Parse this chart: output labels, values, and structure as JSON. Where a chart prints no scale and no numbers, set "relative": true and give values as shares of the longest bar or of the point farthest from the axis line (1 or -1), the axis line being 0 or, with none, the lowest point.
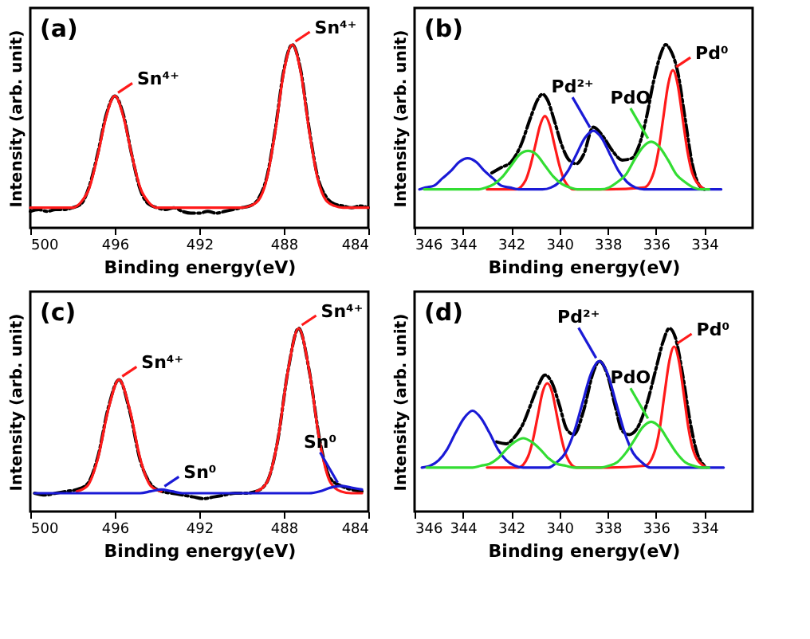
{
  "chart_data": [
    {
      "type": "line",
      "relative": true,
      "xlabel": "Binding energy(eV)",
      "ylabel": "Intensity (arb. unit)",
      "xlim": [
        500,
        484
      ],
      "xticks": [
        500,
        496,
        492,
        488,
        484
      ],
      "tick_labels": "x",
      "x": [
        500,
        499.6,
        499.2,
        498.8,
        498.4,
        498,
        497.6,
        497.2,
        496.8,
        496.4,
        496,
        495.6,
        495.2,
        494.8,
        494.4,
        494,
        493.6,
        493.2,
        492.8,
        492.4,
        492,
        491.6,
        491.2,
        490.8,
        490.4,
        490,
        489.6,
        489.2,
        488.8,
        488.4,
        488,
        487.6,
        487.2,
        486.8,
        486.4,
        486,
        485.6,
        485.2,
        484.8,
        484.4,
        484
      ],
      "series": [
        {
          "color": "#000000",
          "line_style": "dashed",
          "values": [
            0.09,
            0.1,
            0.09,
            0.1,
            0.1,
            0.11,
            0.13,
            0.23,
            0.41,
            0.62,
            0.72,
            0.62,
            0.4,
            0.21,
            0.13,
            0.11,
            0.1,
            0.11,
            0.09,
            0.08,
            0.08,
            0.09,
            0.08,
            0.09,
            0.1,
            0.11,
            0.12,
            0.16,
            0.28,
            0.54,
            0.86,
            1.0,
            0.86,
            0.54,
            0.28,
            0.17,
            0.13,
            0.12,
            0.11,
            0.12,
            0.11
          ]
        },
        {
          "color": "#ff1a1a",
          "line_style": "solid",
          "values": [
            0.11,
            0.11,
            0.11,
            0.11,
            0.11,
            0.11,
            0.14,
            0.22,
            0.4,
            0.61,
            0.72,
            0.61,
            0.4,
            0.22,
            0.14,
            0.11,
            0.11,
            0.11,
            0.11,
            0.11,
            0.11,
            0.11,
            0.11,
            0.11,
            0.11,
            0.11,
            0.12,
            0.15,
            0.27,
            0.53,
            0.85,
            1.0,
            0.85,
            0.53,
            0.27,
            0.15,
            0.12,
            0.11,
            0.11,
            0.11,
            0.11
          ]
        }
      ],
      "annotations": [
        "(a)",
        {
          "text": "Sn⁴⁺",
          "x": 496,
          "y": 0.72
        },
        {
          "text": "Sn⁴⁺",
          "x": 487.6,
          "y": 1.0
        }
      ]
    },
    {
      "type": "line",
      "relative": true,
      "xlabel": "Binding energy(eV)",
      "ylabel": "Intensity (arb. unit)",
      "xlim": [
        346,
        332
      ],
      "xticks": [
        346,
        344,
        342,
        340,
        338,
        336,
        334
      ],
      "tick_labels": "x",
      "series": [
        {
          "color": "#000000",
          "line_style": "dashed",
          "x": [
            342.8,
            342.4,
            342.0,
            341.6,
            341.2,
            340.9,
            340.7,
            340.5,
            340.2,
            339.9,
            339.6,
            339.3,
            339.0,
            338.6,
            338.2,
            337.8,
            337.4,
            337.0,
            336.7,
            336.4,
            336.1,
            335.8,
            335.6,
            335.4,
            335.1,
            334.8,
            334.5,
            334.2,
            334.0
          ],
          "values": [
            0.3,
            0.33,
            0.36,
            0.45,
            0.6,
            0.7,
            0.73,
            0.7,
            0.58,
            0.45,
            0.37,
            0.35,
            0.4,
            0.55,
            0.5,
            0.42,
            0.37,
            0.38,
            0.45,
            0.6,
            0.8,
            0.95,
            1.0,
            0.97,
            0.85,
            0.6,
            0.35,
            0.23,
            0.21
          ]
        },
        {
          "color": "#ff1a1a",
          "line_style": "solid",
          "x": [
            343,
            341.8,
            341.4,
            341.2,
            341.0,
            340.8,
            340.6,
            340.4,
            340.2,
            340.0,
            339.8,
            339.4,
            338,
            336.5,
            336.1,
            335.9,
            335.7,
            335.5,
            335.3,
            335.1,
            334.9,
            334.7,
            334.5,
            334.1,
            334
          ],
          "values": [
            0.21,
            0.21,
            0.26,
            0.34,
            0.45,
            0.56,
            0.61,
            0.56,
            0.45,
            0.34,
            0.26,
            0.21,
            0.21,
            0.22,
            0.3,
            0.42,
            0.6,
            0.78,
            0.86,
            0.78,
            0.6,
            0.42,
            0.3,
            0.22,
            0.21
          ]
        },
        {
          "color": "#1a1ad6",
          "line_style": "solid",
          "x": [
            345.8,
            345.55,
            345.2,
            344.85,
            344.5,
            344.15,
            343.8,
            343.45,
            343.1,
            342.75,
            342.4,
            342.05,
            341.7,
            340.7,
            340.35,
            340.0,
            339.65,
            339.3,
            338.95,
            338.6,
            338.25,
            337.9,
            337.55,
            337.2,
            336.85,
            336.5,
            333.3
          ],
          "values": [
            0.21,
            0.22,
            0.23,
            0.27,
            0.31,
            0.36,
            0.38,
            0.36,
            0.31,
            0.27,
            0.23,
            0.22,
            0.21,
            0.21,
            0.22,
            0.25,
            0.31,
            0.4,
            0.49,
            0.53,
            0.49,
            0.4,
            0.31,
            0.25,
            0.22,
            0.21,
            0.21
          ]
        },
        {
          "color": "#33dd33",
          "line_style": "solid",
          "x": [
            345.6,
            343.4,
            343.05,
            342.7,
            342.35,
            342.0,
            341.65,
            341.3,
            340.95,
            340.6,
            340.25,
            339.9,
            339.55,
            339.2,
            338.3,
            337.95,
            337.6,
            337.25,
            336.9,
            336.55,
            336.2,
            335.85,
            335.5,
            335.15,
            334.8,
            334.45,
            334.1,
            333.8
          ],
          "values": [
            0.21,
            0.21,
            0.22,
            0.24,
            0.28,
            0.34,
            0.4,
            0.42,
            0.4,
            0.34,
            0.28,
            0.24,
            0.22,
            0.21,
            0.21,
            0.22,
            0.25,
            0.29,
            0.37,
            0.44,
            0.47,
            0.44,
            0.37,
            0.29,
            0.25,
            0.22,
            0.21,
            0.21
          ]
        }
      ],
      "annotations": [
        "(b)",
        {
          "text": "Pd²⁺",
          "x": 338.6,
          "y": 0.53
        },
        {
          "text": "PdO",
          "x": 336.2,
          "y": 0.47
        },
        {
          "text": "Pd⁰",
          "x": 335.3,
          "y": 0.86
        }
      ]
    },
    {
      "type": "line",
      "relative": true,
      "xlabel": "Binding energy(eV)",
      "ylabel": "Intensity (arb. unit)",
      "xlim": [
        500,
        484
      ],
      "xticks": [
        500,
        496,
        492,
        488,
        484
      ],
      "tick_labels": "x",
      "x": [
        499.8,
        499.3,
        498.8,
        498.3,
        497.8,
        497.3,
        496.8,
        496.3,
        495.8,
        495.3,
        494.8,
        494.3,
        493.8,
        493.3,
        492.8,
        492.3,
        491.8,
        491.3,
        490.8,
        490.3,
        489.8,
        489.3,
        488.8,
        488.3,
        487.8,
        487.3,
        486.8,
        486.3,
        485.8,
        485.3,
        484.8,
        484.3
      ],
      "series": [
        {
          "color": "#000000",
          "line_style": "dashed",
          "values": [
            0.1,
            0.09,
            0.1,
            0.11,
            0.12,
            0.15,
            0.3,
            0.57,
            0.72,
            0.55,
            0.28,
            0.15,
            0.11,
            0.1,
            0.09,
            0.08,
            0.07,
            0.08,
            0.09,
            0.1,
            0.1,
            0.11,
            0.16,
            0.38,
            0.77,
            1.0,
            0.77,
            0.39,
            0.18,
            0.14,
            0.12,
            0.11
          ]
        },
        {
          "color": "#ff1a1a",
          "line_style": "solid",
          "values": [
            null,
            null,
            null,
            null,
            0.11,
            0.14,
            0.29,
            0.56,
            0.72,
            0.56,
            0.29,
            0.14,
            0.11,
            null,
            null,
            null,
            null,
            null,
            null,
            null,
            null,
            0.11,
            0.16,
            0.38,
            0.77,
            1.0,
            0.77,
            0.38,
            0.16,
            0.11,
            0.1,
            0.1
          ]
        },
        {
          "color": "#1a1ad6",
          "line_style": "solid",
          "values": [
            0.1,
            0.1,
            0.1,
            0.1,
            0.1,
            0.1,
            0.1,
            0.1,
            0.1,
            0.1,
            0.1,
            0.11,
            0.12,
            0.11,
            0.1,
            0.1,
            0.1,
            0.1,
            0.1,
            0.1,
            0.1,
            0.1,
            0.1,
            0.1,
            0.1,
            0.1,
            0.1,
            0.11,
            0.13,
            0.14,
            0.13,
            0.12
          ]
        }
      ],
      "annotations": [
        "(c)",
        {
          "text": "Sn⁴⁺",
          "x": 495.8,
          "y": 0.72
        },
        {
          "text": "Sn⁴⁺",
          "x": 487.3,
          "y": 1.0
        },
        {
          "text": "Sn⁰",
          "x": 493.8,
          "y": 0.12
        },
        {
          "text": "Sn⁰",
          "x": 485.3,
          "y": 0.14
        }
      ]
    },
    {
      "type": "line",
      "relative": true,
      "xlabel": "Binding energy(eV)",
      "ylabel": "Intensity (arb. unit)",
      "xlim": [
        346,
        332
      ],
      "xticks": [
        346,
        344,
        342,
        340,
        338,
        336,
        334
      ],
      "tick_labels": "x",
      "series": [
        {
          "color": "#000000",
          "line_style": "dashed",
          "x": [
            342.6,
            342.2,
            341.9,
            341.5,
            341.2,
            340.9,
            340.6,
            340.3,
            340.0,
            339.7,
            339.4,
            339.0,
            338.6,
            338.35,
            338.0,
            337.7,
            337.4,
            337.1,
            336.8,
            336.4,
            336.0,
            335.7,
            335.45,
            335.2,
            334.9,
            334.6,
            334.3,
            334.0
          ],
          "values": [
            0.38,
            0.37,
            0.4,
            0.48,
            0.58,
            0.68,
            0.745,
            0.7,
            0.58,
            0.45,
            0.42,
            0.55,
            0.76,
            0.82,
            0.74,
            0.58,
            0.44,
            0.42,
            0.45,
            0.58,
            0.78,
            0.93,
            1.0,
            0.95,
            0.75,
            0.5,
            0.32,
            0.25
          ]
        },
        {
          "color": "#ff1a1a",
          "line_style": "solid",
          "x": [
            343,
            341.7,
            341.3,
            341.1,
            340.9,
            340.7,
            340.5,
            340.3,
            340.1,
            339.9,
            339.7,
            339.3,
            338,
            336.45,
            336.05,
            335.85,
            335.65,
            335.45,
            335.25,
            335.05,
            334.85,
            334.65,
            334.45,
            334.05,
            333.9
          ],
          "values": [
            0.24,
            0.24,
            0.3,
            0.39,
            0.52,
            0.65,
            0.7,
            0.65,
            0.52,
            0.39,
            0.3,
            0.24,
            0.24,
            0.25,
            0.33,
            0.45,
            0.64,
            0.82,
            0.9,
            0.82,
            0.64,
            0.45,
            0.33,
            0.25,
            0.24
          ]
        },
        {
          "color": "#1a1ad6",
          "line_style": "solid",
          "x": [
            345.7,
            345.35,
            345.0,
            344.65,
            344.3,
            343.95,
            343.6,
            343.25,
            342.9,
            342.55,
            342.2,
            341.85,
            341.5,
            340.45,
            340.1,
            339.75,
            339.4,
            339.05,
            338.7,
            338.35,
            338.0,
            337.65,
            337.3,
            336.95,
            336.6,
            336.25,
            333.2
          ],
          "values": [
            0.24,
            0.25,
            0.28,
            0.34,
            0.43,
            0.51,
            0.55,
            0.51,
            0.43,
            0.34,
            0.28,
            0.25,
            0.24,
            0.24,
            0.27,
            0.32,
            0.43,
            0.59,
            0.75,
            0.82,
            0.75,
            0.59,
            0.43,
            0.32,
            0.27,
            0.24,
            0.24
          ]
        },
        {
          "color": "#33dd33",
          "line_style": "solid",
          "x": [
            345.5,
            343.6,
            343.25,
            342.9,
            342.55,
            342.2,
            341.85,
            341.5,
            341.15,
            340.8,
            340.45,
            340.1,
            339.75,
            339.4,
            338.3,
            337.95,
            337.6,
            337.25,
            336.9,
            336.55,
            336.2,
            335.85,
            335.5,
            335.15,
            334.8,
            334.45,
            334.1,
            333.8
          ],
          "values": [
            0.24,
            0.24,
            0.25,
            0.26,
            0.29,
            0.34,
            0.38,
            0.4,
            0.38,
            0.34,
            0.29,
            0.26,
            0.25,
            0.24,
            0.24,
            0.25,
            0.27,
            0.32,
            0.39,
            0.46,
            0.49,
            0.46,
            0.39,
            0.32,
            0.27,
            0.25,
            0.24,
            0.24
          ]
        }
      ],
      "annotations": [
        "(d)",
        {
          "text": "Pd²⁺",
          "x": 338.35,
          "y": 0.82
        },
        {
          "text": "PdO",
          "x": 336.2,
          "y": 0.49
        },
        {
          "text": "Pd⁰",
          "x": 335.25,
          "y": 0.9
        }
      ]
    }
  ]
}
